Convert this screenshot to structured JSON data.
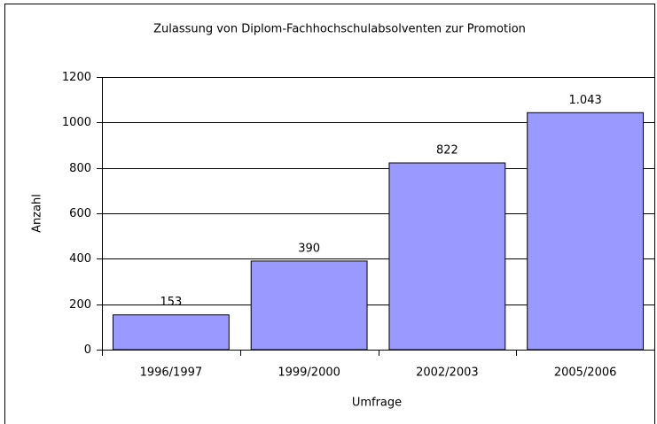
{
  "chart_data": {
    "type": "bar",
    "title": "Zulassung von Diplom-Fachhochschulabsolventen zur Promotion",
    "x_label": "Umfrage",
    "y_label": "Anzahl",
    "categories": [
      "1996/1997",
      "1999/2000",
      "2002/2003",
      "2005/2006"
    ],
    "values": [
      153,
      390,
      822,
      1043
    ],
    "value_labels": [
      "153",
      "390",
      "822",
      "1.043"
    ],
    "color": "#9999ff",
    "ylim": [
      0,
      1200
    ],
    "yticks": [
      0,
      200,
      400,
      600,
      800,
      1000,
      1200
    ],
    "grid": true
  }
}
